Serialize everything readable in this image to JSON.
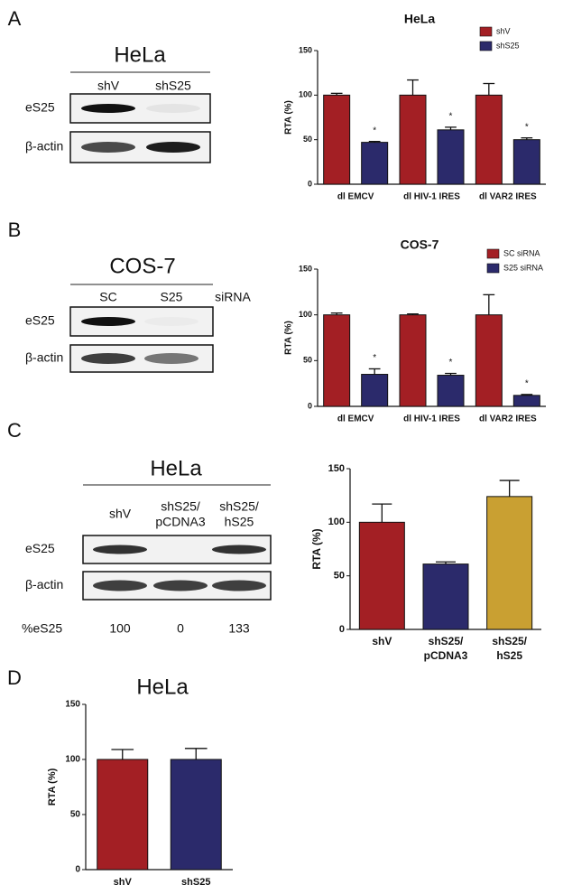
{
  "panel_labels": [
    "A",
    "B",
    "C",
    "D"
  ],
  "blots": [
    {
      "title": "HeLa",
      "lanes": [
        [
          "shV"
        ],
        [
          "shS25"
        ]
      ],
      "rows": [
        "eS25",
        "β-actin"
      ]
    },
    {
      "title": "COS-7",
      "lanes": [
        [
          "SC"
        ],
        [
          "S25"
        ]
      ],
      "lane_suffix": "siRNA",
      "rows": [
        "eS25",
        "β-actin"
      ]
    },
    {
      "title": "HeLa",
      "lanes": [
        [
          "shV"
        ],
        [
          "shS25/",
          "pCDNA3"
        ],
        [
          "shS25/",
          "hS25"
        ]
      ],
      "rows": [
        "eS25",
        "β-actin"
      ],
      "quant_label": "%eS25",
      "quant": [
        100,
        0,
        133
      ]
    }
  ],
  "chart_data": [
    {
      "type": "bar",
      "title": "HeLa",
      "ylabel": "RTA (%)",
      "categories": [
        [
          "dl EMCV"
        ],
        [
          "dl HIV-1 IRES"
        ],
        [
          "dl VAR2 IRES"
        ]
      ],
      "series": [
        {
          "name": "shV",
          "color": "#a31f24",
          "values": [
            100,
            100,
            100
          ],
          "errors": [
            2,
            17,
            13
          ]
        },
        {
          "name": "shS25",
          "color": "#2b2a6b",
          "values": [
            47,
            61,
            50
          ],
          "errors": [
            1,
            3,
            2
          ],
          "significance": [
            "*",
            "*",
            "*"
          ]
        }
      ],
      "ylim": [
        0,
        150
      ],
      "yticks": [
        0,
        50,
        100,
        150
      ],
      "legend": "upper right"
    },
    {
      "type": "bar",
      "title": "COS-7",
      "ylabel": "RTA (%)",
      "categories": [
        [
          "dl EMCV"
        ],
        [
          "dl HIV-1 IRES"
        ],
        [
          "dl VAR2 IRES"
        ]
      ],
      "series": [
        {
          "name": "SC siRNA",
          "color": "#a31f24",
          "values": [
            100,
            100,
            100
          ],
          "errors": [
            2,
            1,
            22
          ]
        },
        {
          "name": "S25 siRNA",
          "color": "#2b2a6b",
          "values": [
            35,
            34,
            12
          ],
          "errors": [
            6,
            2,
            1
          ],
          "significance": [
            "*",
            "*",
            "*"
          ]
        }
      ],
      "ylim": [
        0,
        150
      ],
      "yticks": [
        0,
        50,
        100,
        150
      ],
      "legend": "upper right"
    },
    {
      "type": "bar",
      "ylabel": "RTA (%)",
      "categories": [
        [
          "shV"
        ],
        [
          "shS25/",
          "pCDNA3"
        ],
        [
          "shS25/",
          "hS25"
        ]
      ],
      "series": [
        {
          "colors": [
            "#a31f24",
            "#2b2a6b",
            "#c9a032"
          ],
          "values": [
            100,
            61,
            124
          ],
          "errors": [
            17,
            2,
            15
          ]
        }
      ],
      "ylim": [
        0,
        150
      ],
      "yticks": [
        0,
        50,
        100,
        150
      ],
      "legend": "none"
    },
    {
      "type": "bar",
      "title": "HeLa",
      "ylabel": "RTA (%)",
      "categories": [
        [
          "shV"
        ],
        [
          "shS25"
        ]
      ],
      "series": [
        {
          "colors": [
            "#a31f24",
            "#2b2a6b"
          ],
          "values": [
            100,
            100
          ],
          "errors": [
            9,
            10
          ]
        }
      ],
      "ylim": [
        0,
        150
      ],
      "yticks": [
        0,
        50,
        100,
        150
      ],
      "legend": "none"
    }
  ]
}
